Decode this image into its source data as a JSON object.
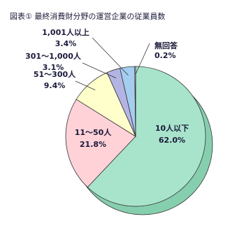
{
  "chart_data": {
    "type": "pie",
    "title": "図表① 最終消費財分野の運営企業の従業員数",
    "categories": [
      "10人以下",
      "11～50人",
      "51～300人",
      "301～1,000人",
      "1,001人以上",
      "無回答"
    ],
    "values": [
      62.0,
      21.8,
      9.4,
      3.1,
      3.4,
      0.2
    ],
    "value_labels": [
      "62.0%",
      "21.8%",
      "9.4%",
      "3.1%",
      "3.4%",
      "0.2%"
    ],
    "colors": [
      "#a8e4cc",
      "#ffd2d8",
      "#ffffcc",
      "#b4b4e4",
      "#a4cdf0",
      "#ffffff"
    ]
  }
}
